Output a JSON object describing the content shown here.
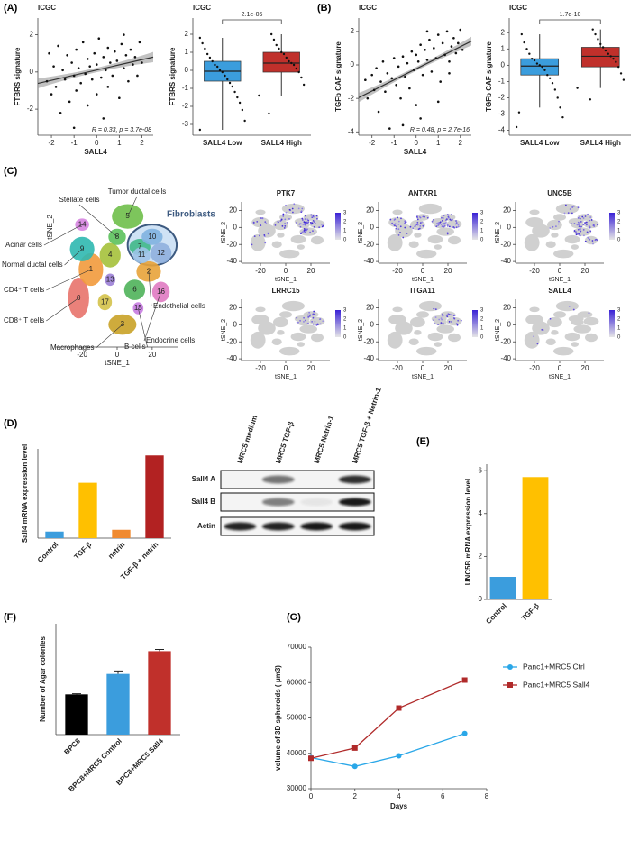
{
  "chart_data": [
    {
      "type": "scatter",
      "panel": "(A)",
      "title": "ICGC",
      "xlabel": "SALL4",
      "ylabel": "FTBRS signature",
      "annotation": "R = 0.33, p = 3.7e-08",
      "x": [
        -2.2,
        -2.0,
        -1.9,
        -1.8,
        -1.7,
        -1.6,
        -1.5,
        -1.4,
        -1.3,
        -1.2,
        -1.1,
        -1.0,
        -0.9,
        -0.9,
        -0.8,
        -0.7,
        -0.6,
        -0.5,
        -0.4,
        -0.4,
        -0.3,
        -0.2,
        -0.1,
        0.0,
        0.0,
        0.1,
        0.2,
        0.3,
        0.4,
        0.5,
        0.5,
        0.6,
        0.7,
        0.8,
        0.9,
        1.0,
        1.1,
        1.2,
        1.3,
        1.4,
        1.5,
        1.6,
        1.7,
        1.8,
        1.9,
        2.0,
        -1.0,
        0.3,
        -2.1,
        1.2
      ],
      "y": [
        -0.5,
        -1.2,
        0.3,
        -0.8,
        1.4,
        -2.2,
        0.1,
        -0.4,
        0.9,
        -1.6,
        0.5,
        -0.2,
        1.2,
        -1.0,
        0.2,
        -0.6,
        1.6,
        -0.1,
        0.7,
        -1.8,
        0.3,
        -0.4,
        1.0,
        0.4,
        -1.2,
        1.8,
        -0.3,
        0.8,
        0.1,
        1.3,
        -0.8,
        0.5,
        -0.2,
        1.1,
        0.6,
        -1.4,
        1.5,
        0.2,
        0.9,
        -0.5,
        1.2,
        0.4,
        0.8,
        -0.2,
        1.6,
        0.5,
        -3.0,
        -2.5,
        1.0,
        2.0
      ],
      "color": "#111111",
      "fit_color": "#333333",
      "xlim": [
        -2.6,
        2.5
      ],
      "ylim": [
        -3.4,
        2.9
      ],
      "xticks": [
        -2,
        -1,
        0,
        1,
        2
      ],
      "yticks": [
        -2,
        0,
        2
      ]
    },
    {
      "type": "box",
      "title": "ICGC",
      "ylabel": "FTBRS signature",
      "categories": [
        "SALL4 Low",
        "SALL4 High"
      ],
      "colors": [
        "#3b9ddd",
        "#c0302b"
      ],
      "boxes": [
        {
          "whislo": -3.3,
          "q1": -0.6,
          "med": -0.05,
          "q3": 0.5,
          "whishi": 1.8,
          "points": [
            -3.3,
            -2.8,
            -2.2,
            -1.8,
            -1.5,
            -1.2,
            -0.9,
            -0.7,
            -0.5,
            -0.3,
            -0.1,
            0.0,
            0.2,
            0.3,
            0.5,
            0.7,
            0.9,
            1.2,
            1.5,
            1.8
          ]
        },
        {
          "whislo": -1.4,
          "q1": -0.1,
          "med": 0.4,
          "q3": 1.0,
          "whishi": 2.0,
          "points": [
            -1.4,
            -0.8,
            -0.4,
            -0.1,
            0.1,
            0.3,
            0.4,
            0.5,
            0.7,
            0.9,
            1.0,
            1.2,
            1.4,
            1.7,
            2.0,
            -2.4
          ]
        }
      ],
      "p_label": "2.1e-05",
      "ylim": [
        -3.6,
        2.9
      ],
      "yticks": [
        -3,
        -2,
        -1,
        0,
        1,
        2
      ]
    },
    {
      "type": "scatter",
      "panel": "(B)",
      "title": "ICGC",
      "xlabel": "SALL4",
      "ylabel": "TGFb CAF signature",
      "annotation": "R = 0.48, p = 2.7e-16",
      "x": [
        -2.2,
        -2.0,
        -1.9,
        -1.8,
        -1.7,
        -1.6,
        -1.5,
        -1.4,
        -1.3,
        -1.2,
        -1.1,
        -1.0,
        -0.9,
        -0.8,
        -0.7,
        -0.6,
        -0.5,
        -0.4,
        -0.3,
        -0.2,
        -0.1,
        0.0,
        0.0,
        0.1,
        0.2,
        0.3,
        0.4,
        0.5,
        0.6,
        0.7,
        0.8,
        0.9,
        1.0,
        1.1,
        1.2,
        1.3,
        1.4,
        1.5,
        1.6,
        1.7,
        1.8,
        1.9,
        2.0,
        2.1,
        -2.3,
        0.2,
        1.0,
        -0.6,
        0.5,
        1.5
      ],
      "y": [
        -2.0,
        -0.6,
        -1.5,
        -0.2,
        -2.8,
        -1.0,
        0.2,
        -1.6,
        -0.5,
        -3.8,
        -0.8,
        0.4,
        -1.2,
        -0.1,
        -2.0,
        0.5,
        -0.7,
        0.1,
        -1.4,
        0.8,
        -0.3,
        0.6,
        -2.4,
        0.2,
        1.2,
        -0.6,
        0.9,
        0.3,
        1.5,
        -0.4,
        1.0,
        0.4,
        1.8,
        -1.0,
        1.3,
        0.6,
        2.0,
        0.2,
        1.1,
        1.6,
        0.7,
        1.3,
        2.1,
        0.9,
        -0.9,
        -3.2,
        -2.2,
        -3.6,
        2.0,
        -0.5
      ],
      "color": "#111111",
      "fit_color": "#333333",
      "xlim": [
        -2.6,
        2.5
      ],
      "ylim": [
        -4.2,
        2.8
      ],
      "xticks": [
        -2,
        -1,
        0,
        1,
        2
      ],
      "yticks": [
        -4,
        -2,
        0,
        2
      ]
    },
    {
      "type": "box",
      "title": "ICGC",
      "ylabel": "TGFb CAF signature",
      "categories": [
        "SALL4 Low",
        "SALL4 High"
      ],
      "colors": [
        "#3b9ddd",
        "#c0302b"
      ],
      "boxes": [
        {
          "whislo": -2.6,
          "q1": -0.6,
          "med": -0.05,
          "q3": 0.4,
          "whishi": 1.9,
          "points": [
            -3.8,
            -3.2,
            -2.6,
            -2.0,
            -1.5,
            -1.1,
            -0.8,
            -0.6,
            -0.3,
            -0.1,
            0.0,
            0.1,
            0.3,
            0.4,
            0.7,
            1.0,
            1.4,
            1.9,
            -2.9
          ]
        },
        {
          "whislo": -1.4,
          "q1": -0.1,
          "med": 0.55,
          "q3": 1.1,
          "whishi": 2.2,
          "points": [
            -1.4,
            -0.9,
            -0.5,
            -0.1,
            0.2,
            0.4,
            0.55,
            0.7,
            0.9,
            1.1,
            1.3,
            1.6,
            1.9,
            2.2,
            -2.1
          ]
        }
      ],
      "p_label": "1.7e-10",
      "ylim": [
        -4.3,
        2.9
      ],
      "yticks": [
        -4,
        -3,
        -2,
        -1,
        0,
        1,
        2
      ]
    },
    {
      "type": "tsne_clusters",
      "panel": "(C)",
      "xlabel": "tSNE_1",
      "ylabel": "tSNE_2",
      "xlim": [
        -35,
        35
      ],
      "ylim": [
        -42,
        30
      ],
      "xticks": [
        -20,
        0,
        20
      ],
      "cluster_labels": [
        "0",
        "1",
        "2",
        "3",
        "4",
        "5",
        "6",
        "7",
        "8",
        "9",
        "10",
        "11",
        "12",
        "13",
        "14",
        "15",
        "16",
        "17"
      ],
      "cell_types": [
        "Stellate cells",
        "Tumor ductal cells",
        "Fibroblasts",
        "Acinar cells",
        "Normal ductal cells",
        "CD4⁺ T cells",
        "CD8⁺ T cells",
        "Macrophages",
        "B cells",
        "Endocrine cells",
        "Endothelial cells"
      ]
    },
    {
      "type": "tsne",
      "title": "PTK7",
      "xlabel": "tSNE_1",
      "ylabel": "tSNE_2",
      "xlim": [
        -35,
        35
      ],
      "ylim": [
        -42,
        30
      ],
      "xticks": [
        -20,
        0,
        20
      ],
      "yticks": [
        -40,
        -20,
        0,
        20
      ],
      "colorbar_ticks": [
        0,
        1,
        2,
        3
      ]
    },
    {
      "type": "tsne",
      "title": "ANTXR1",
      "xlabel": "tSNE_1",
      "ylabel": "tSNE_2",
      "xlim": [
        -35,
        35
      ],
      "ylim": [
        -42,
        30
      ],
      "xticks": [
        -20,
        0,
        20
      ],
      "yticks": [
        -40,
        -20,
        0,
        20
      ],
      "colorbar_ticks": [
        0,
        1,
        2,
        3
      ]
    },
    {
      "type": "tsne",
      "title": "UNC5B",
      "xlabel": "tSNE_1",
      "ylabel": "tSNE_2",
      "xlim": [
        -35,
        35
      ],
      "ylim": [
        -42,
        30
      ],
      "xticks": [
        -20,
        0,
        20
      ],
      "yticks": [
        -40,
        -20,
        0,
        20
      ],
      "colorbar_ticks": [
        0,
        1,
        2,
        3
      ]
    },
    {
      "type": "tsne",
      "title": "LRRC15",
      "xlabel": "tSNE_1",
      "ylabel": "tSNE_2",
      "xlim": [
        -35,
        35
      ],
      "ylim": [
        -42,
        30
      ],
      "xticks": [
        -20,
        0,
        20
      ],
      "yticks": [
        -40,
        -20,
        0,
        20
      ],
      "colorbar_ticks": [
        0,
        1,
        2,
        3
      ]
    },
    {
      "type": "tsne",
      "title": "ITGA11",
      "xlabel": "tSNE_1",
      "ylabel": "tSNE_2",
      "xlim": [
        -35,
        35
      ],
      "ylim": [
        -42,
        30
      ],
      "xticks": [
        -20,
        0,
        20
      ],
      "yticks": [
        -40,
        -20,
        0,
        20
      ],
      "colorbar_ticks": [
        0,
        1,
        2,
        3
      ]
    },
    {
      "type": "tsne",
      "title": "SALL4",
      "xlabel": "tSNE_1",
      "ylabel": "tSNE_2",
      "xlim": [
        -35,
        35
      ],
      "ylim": [
        -42,
        30
      ],
      "xticks": [
        -20,
        0,
        20
      ],
      "yticks": [
        -40,
        -20,
        0,
        20
      ],
      "colorbar_ticks": [
        0,
        1,
        2,
        3
      ]
    },
    {
      "type": "bar",
      "panel": "(D)",
      "ylabel": "Sall4 mRNA expression level",
      "categories": [
        "Control",
        "TGF-β",
        "netrin",
        "TGF-β + netrin"
      ],
      "values": [
        1.1,
        9.3,
        1.4,
        13.9
      ],
      "colors": [
        "#3b9ddd",
        "#ffc000",
        "#f08a30",
        "#b22222"
      ],
      "ylim": [
        0,
        15
      ]
    },
    {
      "type": "blot",
      "lanes": [
        "MRC5 medium",
        "MRC5 TGF-β",
        "MRC5 Netrin-1",
        "MRC5 TGF-β + Netrin-1"
      ],
      "rows": [
        "Sall4 A",
        "Sall4 B",
        "Actin"
      ]
    },
    {
      "type": "bar",
      "panel": "(E)",
      "ylabel": "UNC5B mRNA expression level",
      "categories": [
        "Control",
        "TGF-β"
      ],
      "values": [
        1.05,
        5.7
      ],
      "colors": [
        "#3b9ddd",
        "#ffc000"
      ],
      "ylim": [
        0,
        6.3
      ],
      "yticks": [
        0,
        2,
        4,
        6
      ]
    },
    {
      "type": "bar",
      "panel": "(F)",
      "ylabel": "Number of Agar colonies",
      "categories": [
        "BPC8",
        "BPC8+MRC5 Control",
        "BPC8+MRC5 Sall4"
      ],
      "values": [
        34.5,
        52,
        71.5
      ],
      "errors": [
        0.5,
        2.5,
        1.5
      ],
      "colors": [
        "#000000",
        "#3b9ddd",
        "#c0302b"
      ],
      "ylim": [
        0,
        95
      ]
    },
    {
      "type": "line",
      "panel": "(G)",
      "xlabel": "Days",
      "ylabel": "volume of 3D spheroids ( μm3)",
      "x": [
        0,
        2,
        4,
        7
      ],
      "series": [
        {
          "name": "Panc1+MRC5 Ctrl",
          "color": "#2aa7e8",
          "marker": "circle",
          "values": [
            38800,
            36300,
            39300,
            45600
          ]
        },
        {
          "name": "Panc1+MRC5  Sall4",
          "color": "#b02a2a",
          "marker": "square",
          "values": [
            38600,
            41500,
            52800,
            60700
          ]
        }
      ],
      "xlim": [
        0,
        8
      ],
      "ylim": [
        30000,
        70000
      ],
      "xticks": [
        0,
        2,
        4,
        6,
        8
      ],
      "yticks": [
        30000,
        40000,
        50000,
        60000,
        70000
      ]
    }
  ]
}
